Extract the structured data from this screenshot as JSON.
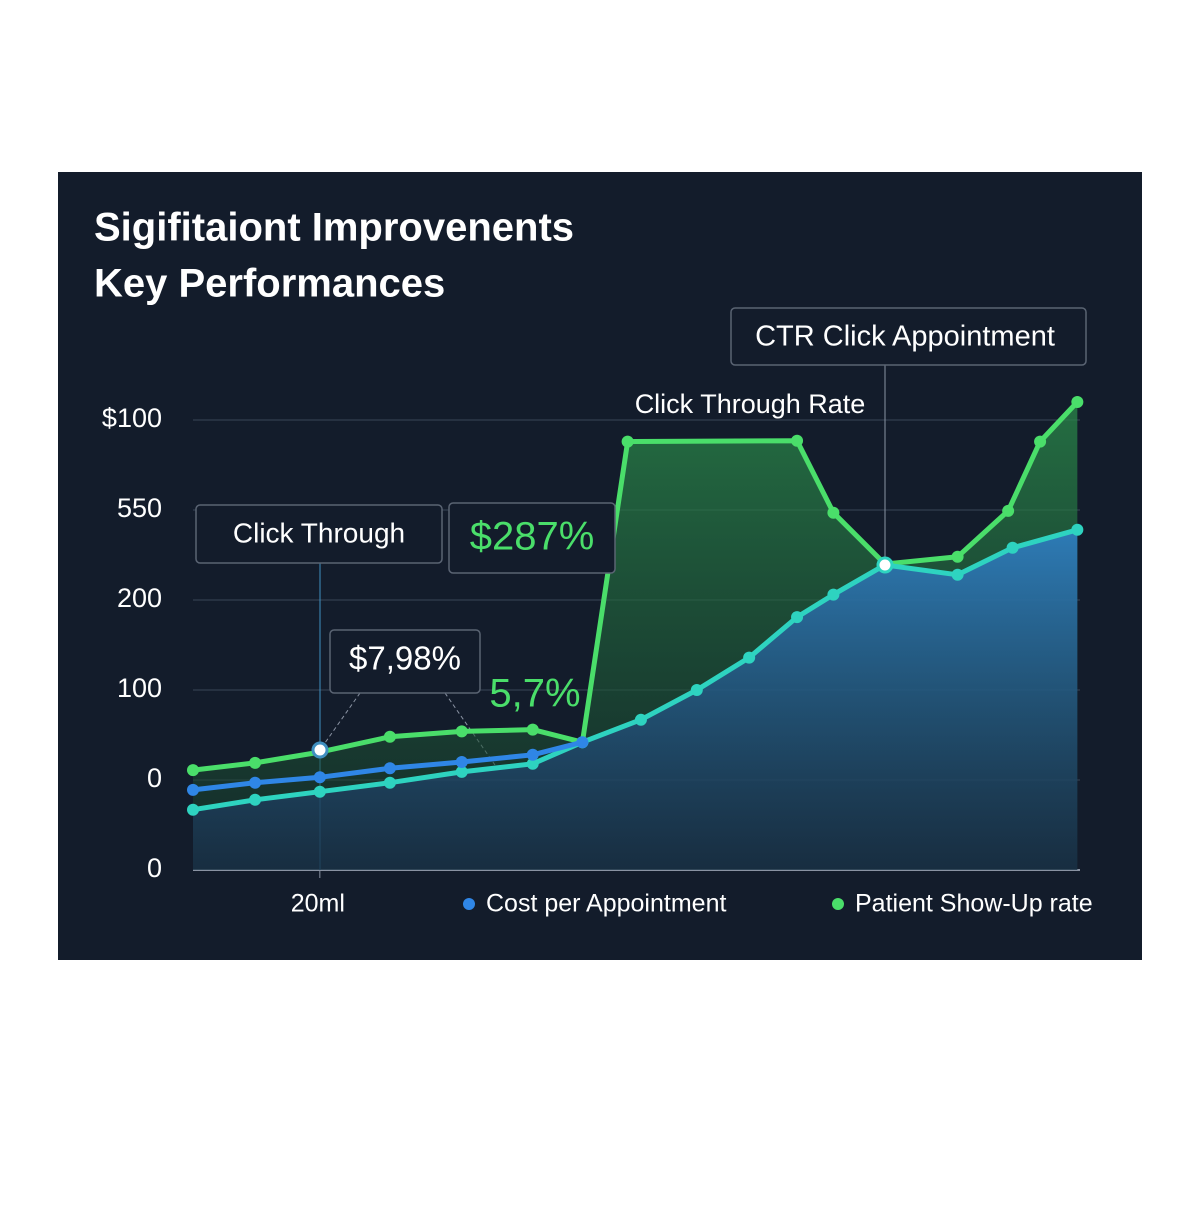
{
  "chart_data": {
    "type": "line",
    "title": "Sigifitaiont Improvenents",
    "subtitle": "Key Performances",
    "xlim": [
      0,
      100
    ],
    "xticks": [
      {
        "value": 14.3,
        "label": "20ml"
      }
    ],
    "ylim": [
      0,
      5.3
    ],
    "yticks": [
      {
        "value": 0,
        "label": "0"
      },
      {
        "value": 1,
        "label": "0"
      },
      {
        "value": 2,
        "label": "100"
      },
      {
        "value": 3,
        "label": "200"
      },
      {
        "value": 4,
        "label": "550"
      },
      {
        "value": 5,
        "label": "$100"
      }
    ],
    "grid": true,
    "legend": "bottom",
    "series": [
      {
        "name": "Patient Show-Up rate",
        "color": "#4ade6a",
        "x": [
          0,
          7,
          14.3,
          22.2,
          30.3,
          38.3,
          43.9,
          49,
          68.1,
          72.2,
          78,
          86.2,
          91.9,
          95.5,
          99.7
        ],
        "values": [
          1.11,
          1.19,
          1.31,
          1.48,
          1.54,
          1.56,
          1.42,
          4.76,
          4.77,
          3.97,
          3.4,
          3.48,
          3.99,
          4.76,
          5.2
        ]
      },
      {
        "color": "#2ed3c0",
        "x": [
          0,
          7,
          14.3,
          22.2,
          30.3,
          38.3,
          43.9,
          50.5,
          56.8,
          62.7,
          68.1,
          72.2,
          78,
          86.2,
          92.4,
          99.7
        ],
        "values": [
          0.67,
          0.78,
          0.87,
          0.97,
          1.09,
          1.18,
          1.42,
          1.67,
          2,
          2.36,
          2.81,
          3.06,
          3.39,
          3.28,
          3.58,
          3.78
        ]
      },
      {
        "name": "Cost per Appointment",
        "color": "#2f86e6",
        "x": [
          0,
          7,
          14.3,
          22.2,
          30.3,
          38.3,
          43.9
        ],
        "values": [
          0.89,
          0.97,
          1.03,
          1.13,
          1.2,
          1.28,
          1.42
        ]
      }
    ],
    "annotations": [
      "Click Through",
      "$287%",
      "$7,98%",
      "5,7%",
      "Click Through Rate",
      "CTR Click Appointment"
    ]
  }
}
